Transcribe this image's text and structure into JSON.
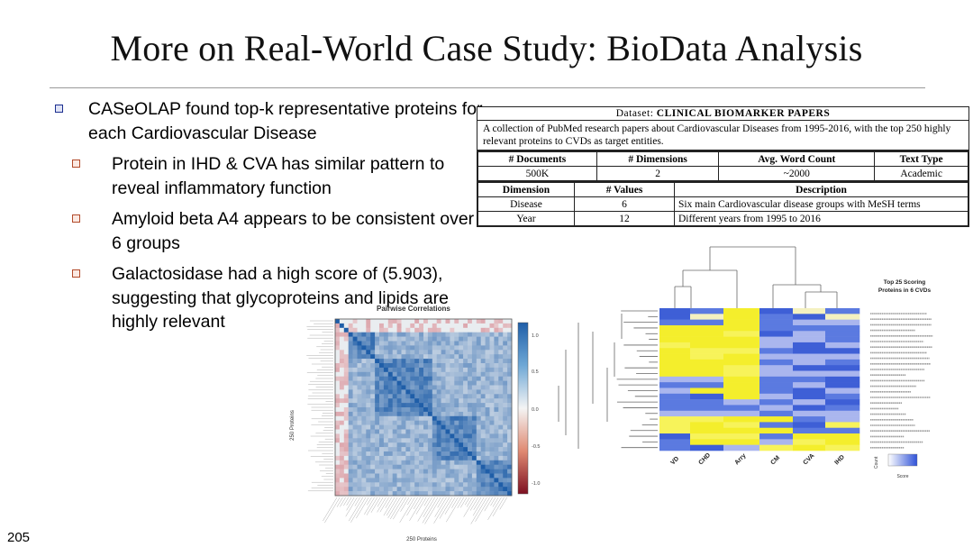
{
  "slide": {
    "title": "More on Real-World Case Study: BioData Analysis",
    "page_number": "205"
  },
  "bullets": [
    {
      "level": 1,
      "text": "CASeOLAP found top-k representative proteins for each Cardiovascular Disease"
    },
    {
      "level": 2,
      "text": "Protein in IHD & CVA has similar pattern to reveal inflammatory function"
    },
    {
      "level": 2,
      "text": "Amyloid beta A4 appears to be consistent over 6 groups"
    },
    {
      "level": 2,
      "text": "Galactosidase had a high score of (5.903), suggesting that glycoproteins and lipids are highly relevant"
    }
  ],
  "dataset_table": {
    "caption_prefix": "Dataset:",
    "caption_name": "CLINICAL BIOMARKER PAPERS",
    "description": "A collection of PubMed research papers about Cardiovascular Diseases from 1995-2016, with the top 250 highly relevant proteins to CVDs as target entities.",
    "stats_headers": [
      "# Documents",
      "# Dimensions",
      "Avg. Word Count",
      "Text Type"
    ],
    "stats_row": [
      "500K",
      "2",
      "~2000",
      "Academic"
    ],
    "dim_headers": [
      "Dimension",
      "# Values",
      "Description"
    ],
    "dim_rows": [
      [
        "Disease",
        "6",
        "Six main Cardiovascular disease groups with MeSH terms"
      ],
      [
        "Year",
        "12",
        "Different years from 1995 to 2016"
      ]
    ]
  },
  "corr_plot": {
    "title": "Pairwise Correlations",
    "ylabel": "250 Proteins",
    "xlabel": "250 Proteins",
    "colorbar_ticks": [
      "1.0",
      "0.5",
      "0.0",
      "-0.5",
      "-1.0"
    ],
    "colors": {
      "high": "#1f5ea8",
      "low": "#b2182b",
      "mid": "#f4f4f4"
    }
  },
  "heatmap": {
    "title_line1": "Top 25 Scoring",
    "title_line2": "Proteins in 6 CVDs",
    "columns": [
      "VD",
      "CHD",
      "Arry",
      "CM",
      "CVA",
      "IHD"
    ],
    "legend_label": "Score",
    "legend_ylabel": "Count",
    "colors": {
      "high": "#f2ee2e",
      "low": "#3d5ad6",
      "mid": "#9aa8ec"
    }
  }
}
